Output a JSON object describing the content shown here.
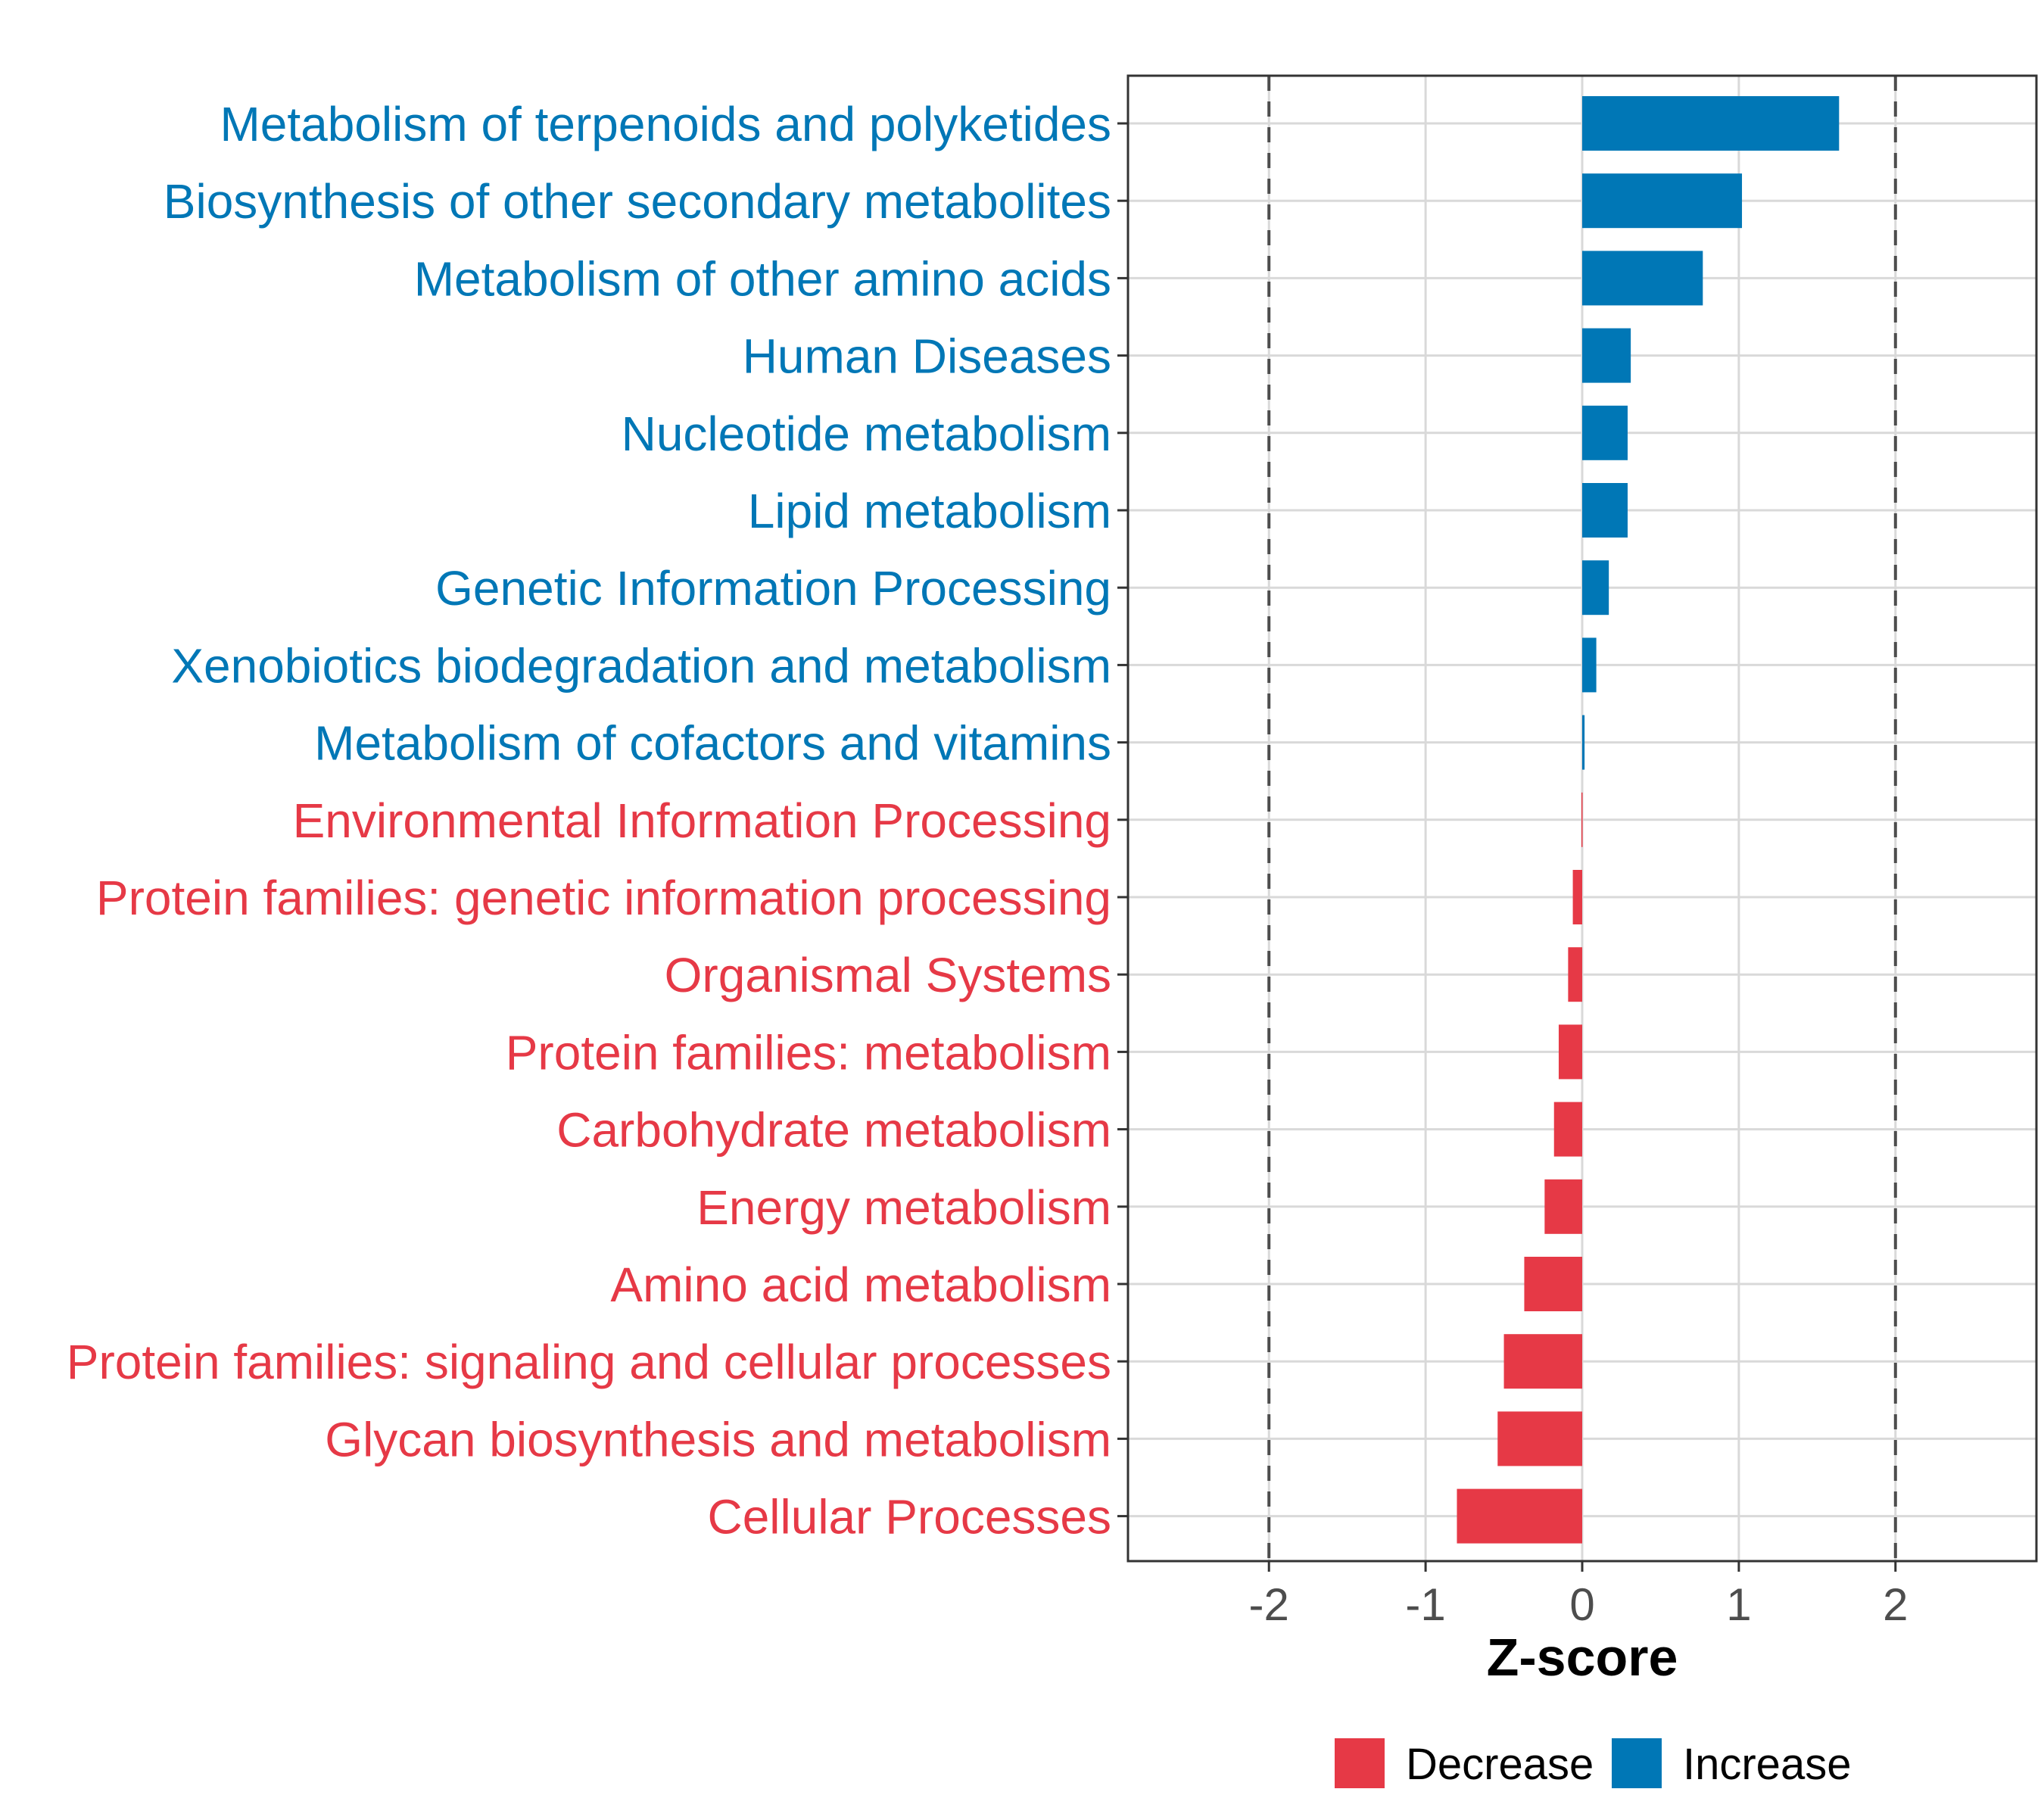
{
  "chart_data": {
    "type": "bar",
    "orientation": "horizontal",
    "categories": [
      "Metabolism of terpenoids and polyketides",
      "Biosynthesis of other secondary metabolites",
      "Metabolism of other amino acids",
      "Human Diseases",
      "Nucleotide metabolism",
      "Lipid metabolism",
      "Genetic Information Processing",
      "Xenobiotics biodegradation and metabolism",
      "Metabolism of cofactors and vitamins",
      "Environmental Information Processing",
      "Protein families: genetic information processing",
      "Organismal Systems",
      "Protein families: metabolism",
      "Carbohydrate metabolism",
      "Energy metabolism",
      "Amino acid metabolism",
      "Protein families: signaling and cellular processes",
      "Glycan biosynthesis and metabolism",
      "Cellular Processes"
    ],
    "values": [
      1.64,
      1.02,
      0.77,
      0.31,
      0.29,
      0.29,
      0.17,
      0.09,
      0.015,
      -0.005,
      -0.06,
      -0.09,
      -0.15,
      -0.18,
      -0.24,
      -0.37,
      -0.5,
      -0.54,
      -0.8
    ],
    "groups": [
      "Increase",
      "Increase",
      "Increase",
      "Increase",
      "Increase",
      "Increase",
      "Increase",
      "Increase",
      "Increase",
      "Decrease",
      "Decrease",
      "Decrease",
      "Decrease",
      "Decrease",
      "Decrease",
      "Decrease",
      "Decrease",
      "Decrease",
      "Decrease"
    ],
    "xlabel": "Z-score",
    "ylabel": "",
    "xlim": [
      -2.9,
      2.9
    ],
    "xticks": [
      "-2",
      "-1",
      "0",
      "1",
      "2"
    ],
    "xtick_values": [
      -2,
      -1,
      0,
      1,
      2
    ],
    "reference_lines": [
      -2,
      2
    ],
    "grid": true,
    "legend": {
      "position": "bottom",
      "items": [
        {
          "label": "Decrease",
          "color": "#e63946"
        },
        {
          "label": "Increase",
          "color": "#0077b6"
        }
      ]
    },
    "colors": {
      "Decrease": "#e63946",
      "Increase": "#0077b6"
    }
  }
}
